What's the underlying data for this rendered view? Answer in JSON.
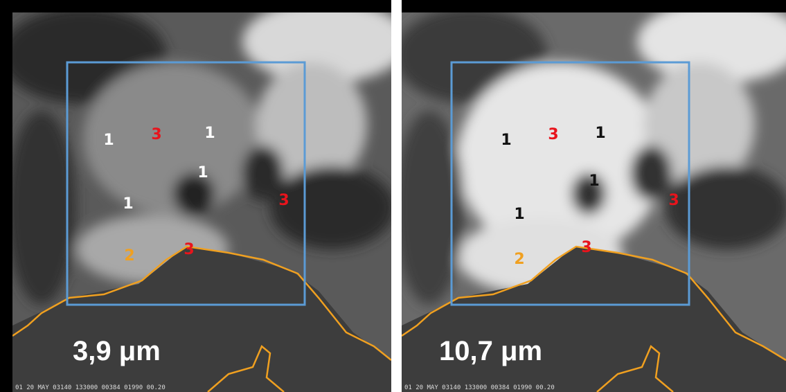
{
  "panels": [
    {
      "band": "3,9 μm",
      "caption": "01 20 MAY 03140 133000 00384 01990 00.20",
      "markers": [
        "1",
        "3",
        "1",
        "1",
        "1",
        "3",
        "2",
        "3"
      ]
    },
    {
      "band": "10,7 μm",
      "caption": "01 20 MAY 03140 133000 00384 01990 00.20",
      "markers": [
        "1",
        "3",
        "1",
        "1",
        "1",
        "3",
        "2",
        "3"
      ]
    }
  ]
}
